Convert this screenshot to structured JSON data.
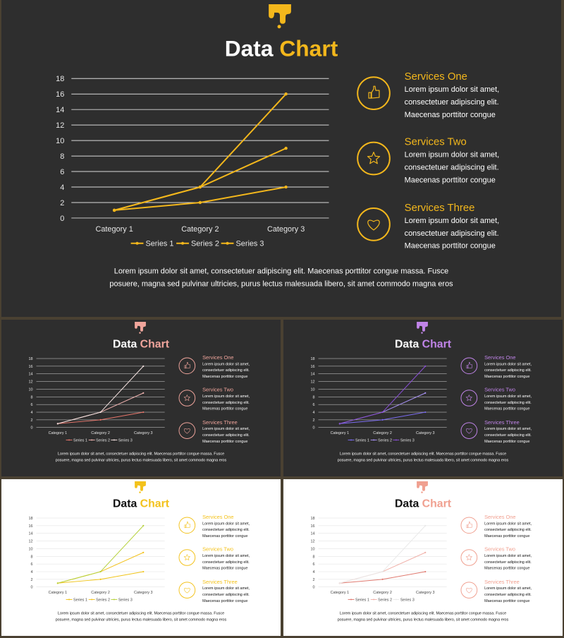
{
  "slides": [
    {
      "theme": {
        "bg": "#2e2e2e",
        "accent": "#f3b71c",
        "text": "#ffffff",
        "grid": "#d9d9d9",
        "axis_text": "#e6e6e6",
        "series_colors": [
          "#f3b71c",
          "#f3b71c",
          "#f3b71c"
        ]
      },
      "title_word1": "Data",
      "title_word2": "Chart",
      "services": [
        {
          "title": "Services One",
          "body": [
            "Lorem ipsum dolor sit amet,",
            "consectetuer adipiscing elit.",
            "Maecenas porttitor congue"
          ],
          "icon": "thumbs-up-icon"
        },
        {
          "title": "Services Two",
          "body": [
            "Lorem ipsum dolor sit amet,",
            "consectetuer adipiscing elit.",
            "Maecenas porttitor congue"
          ],
          "icon": "star-icon"
        },
        {
          "title": "Services Three",
          "body": [
            "Lorem ipsum dolor sit amet,",
            "consectetuer adipiscing elit.",
            "Maecenas porttitor congue"
          ],
          "icon": "heart-icon"
        }
      ],
      "footer": [
        "Lorem ipsum dolor sit amet, consectetuer adipiscing elit. Maecenas porttitor congue massa. Fusce",
        "posuere, magna sed pulvinar ultricies, purus lectus malesuada libero, sit amet commodo magna eros"
      ]
    },
    {
      "theme": {
        "bg": "#2e2e2e",
        "accent": "#f0a59c",
        "text": "#ffffff",
        "grid": "#d9d9d9",
        "axis_text": "#e6e6e6",
        "series_colors": [
          "#e8766b",
          "#f0b3b0",
          "#f5e3e1"
        ]
      },
      "title_word1": "Data",
      "title_word2": "Chart",
      "services": [
        {
          "title": "Services One",
          "body": [
            "Lorem ipsum dolor sit amet,",
            "consectetuer adipiscing elit.",
            "Maecenas porttitor congue"
          ],
          "icon": "thumbs-up-icon"
        },
        {
          "title": "Services Two",
          "body": [
            "Lorem ipsum dolor sit amet,",
            "consectetuer adipiscing elit.",
            "Maecenas porttitor congue"
          ],
          "icon": "star-icon"
        },
        {
          "title": "Services Three",
          "body": [
            "Lorem ipsum dolor sit amet,",
            "consectetuer adipiscing elit.",
            "Maecenas porttitor congue"
          ],
          "icon": "heart-icon"
        }
      ],
      "footer": [
        "Lorem ipsum dolor sit amet, consectetuer adipiscing elit. Maecenas porttitor congue massa. Fusce",
        "posuere, magna sed pulvinar ultricies, purus lectus malesuada libero, sit amet commodo magna eros"
      ]
    },
    {
      "theme": {
        "bg": "#2e2e2e",
        "accent": "#c084e8",
        "text": "#ffffff",
        "grid": "#d9d9d9",
        "axis_text": "#e6e6e6",
        "series_colors": [
          "#7b6cf0",
          "#a892f5",
          "#8a4fd6"
        ]
      },
      "title_word1": "Data",
      "title_word2": "Chart",
      "services": [
        {
          "title": "Services One",
          "body": [
            "Lorem ipsum dolor sit amet,",
            "consectetuer adipiscing elit.",
            "Maecenas porttitor congue"
          ],
          "icon": "thumbs-up-icon"
        },
        {
          "title": "Services Two",
          "body": [
            "Lorem ipsum dolor sit amet,",
            "consectetuer adipiscing elit.",
            "Maecenas porttitor congue"
          ],
          "icon": "star-icon"
        },
        {
          "title": "Services Three",
          "body": [
            "Lorem ipsum dolor sit amet,",
            "consectetuer adipiscing elit.",
            "Maecenas porttitor congue"
          ],
          "icon": "heart-icon"
        }
      ],
      "footer": [
        "Lorem ipsum dolor sit amet, consectetuer adipiscing elit. Maecenas porttitor congue massa. Fusce",
        "posuere, magna sed pulvinar ultricies, purus lectus malesuada libero, sit amet commodo magna eros"
      ]
    },
    {
      "theme": {
        "bg": "#ffffff",
        "accent": "#f3c21c",
        "text": "#111111",
        "grid": "#dddddd",
        "axis_text": "#444444",
        "series_colors": [
          "#f0c419",
          "#f3c21c",
          "#b5d13a"
        ]
      },
      "title_word1": "Data",
      "title_word2": "Chart",
      "services": [
        {
          "title": "Services One",
          "body": [
            "Lorem ipsum dolor sit amet,",
            "consectetuer adipiscing elit.",
            "Maecenas porttitor congue"
          ],
          "icon": "thumbs-up-icon"
        },
        {
          "title": "Services Two",
          "body": [
            "Lorem ipsum dolor sit amet,",
            "consectetuer adipiscing elit.",
            "Maecenas porttitor congue"
          ],
          "icon": "star-icon"
        },
        {
          "title": "Services Three",
          "body": [
            "Lorem ipsum dolor sit amet,",
            "consectetuer adipiscing elit.",
            "Maecenas porttitor congue"
          ],
          "icon": "heart-icon"
        }
      ],
      "footer": [
        "Lorem ipsum dolor sit amet, consectetuer adipiscing elit. Maecenas porttitor congue massa. Fusce",
        "posuere, magna sed pulvinar ultricies, purus lectus malesuada libero, sit amet commodo magna eros"
      ]
    },
    {
      "theme": {
        "bg": "#ffffff",
        "accent": "#f0a090",
        "text": "#111111",
        "grid": "#dddddd",
        "axis_text": "#444444",
        "series_colors": [
          "#e07a70",
          "#f0b0a8",
          "#e9e9e9"
        ]
      },
      "title_word1": "Data",
      "title_word2": "Chart",
      "services": [
        {
          "title": "Services One",
          "body": [
            "Lorem ipsum dolor sit amet,",
            "consectetuer adipiscing elit.",
            "Maecenas porttitor congue"
          ],
          "icon": "thumbs-up-icon"
        },
        {
          "title": "Services Two",
          "body": [
            "Lorem ipsum dolor sit amet,",
            "consectetuer adipiscing elit.",
            "Maecenas porttitor congue"
          ],
          "icon": "star-icon"
        },
        {
          "title": "Services Three",
          "body": [
            "Lorem ipsum dolor sit amet,",
            "consectetuer adipiscing elit.",
            "Maecenas porttitor congue"
          ],
          "icon": "heart-icon"
        }
      ],
      "footer": [
        "Lorem ipsum dolor sit amet, consectetuer adipiscing elit. Maecenas porttitor congue massa. Fusce",
        "posuere, magna sed pulvinar ultricies, purus lectus malesuada libero, sit amet commodo magna eros"
      ]
    }
  ],
  "chart_data": {
    "type": "line",
    "categories": [
      "Category 1",
      "Category 2",
      "Category 3"
    ],
    "series": [
      {
        "name": "Series 1",
        "values": [
          1,
          2,
          4
        ]
      },
      {
        "name": "Series 2",
        "values": [
          1,
          4,
          9
        ]
      },
      {
        "name": "Series 3",
        "values": [
          1,
          4,
          16
        ]
      }
    ],
    "y_ticks": [
      "0",
      "2",
      "4",
      "6",
      "8",
      "10",
      "12",
      "14",
      "16",
      "18"
    ],
    "ylim": [
      0,
      18
    ],
    "grid": true,
    "legend": "bottom"
  }
}
